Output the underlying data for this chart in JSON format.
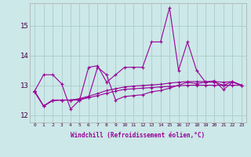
{
  "xlabel": "Windchill (Refroidissement éolien,°C)",
  "bg_color": "#cce8e8",
  "grid_color": "#aacccc",
  "line_color": "#990099",
  "xlim": [
    -0.5,
    23.5
  ],
  "ylim": [
    11.75,
    15.75
  ],
  "yticks": [
    12,
    13,
    14,
    15
  ],
  "xticks": [
    0,
    1,
    2,
    3,
    4,
    5,
    6,
    7,
    8,
    9,
    10,
    11,
    12,
    13,
    14,
    15,
    16,
    17,
    18,
    19,
    20,
    21,
    22,
    23
  ],
  "series": [
    [
      12.8,
      13.35,
      13.35,
      13.05,
      12.2,
      12.5,
      13.6,
      13.65,
      13.1,
      13.35,
      13.6,
      13.6,
      13.6,
      14.45,
      14.45,
      15.6,
      13.5,
      14.45,
      13.5,
      13.1,
      13.15,
      12.85,
      13.1,
      13.0
    ],
    [
      12.8,
      12.3,
      12.5,
      12.5,
      12.5,
      12.5,
      12.6,
      13.6,
      13.35,
      12.5,
      12.62,
      12.65,
      12.68,
      12.78,
      12.82,
      12.9,
      13.0,
      13.1,
      13.05,
      13.1,
      13.1,
      13.0,
      13.12,
      13.0
    ],
    [
      12.78,
      12.3,
      12.5,
      12.5,
      12.5,
      12.55,
      12.63,
      12.72,
      12.82,
      12.88,
      12.94,
      12.97,
      12.99,
      13.01,
      13.03,
      13.07,
      13.1,
      13.12,
      13.12,
      13.12,
      13.12,
      13.1,
      13.12,
      13.0
    ],
    [
      12.78,
      12.3,
      12.48,
      12.5,
      12.5,
      12.52,
      12.58,
      12.65,
      12.73,
      12.8,
      12.86,
      12.88,
      12.9,
      12.92,
      12.94,
      12.96,
      12.98,
      13.0,
      13.0,
      13.0,
      13.0,
      13.0,
      13.0,
      13.0
    ]
  ]
}
